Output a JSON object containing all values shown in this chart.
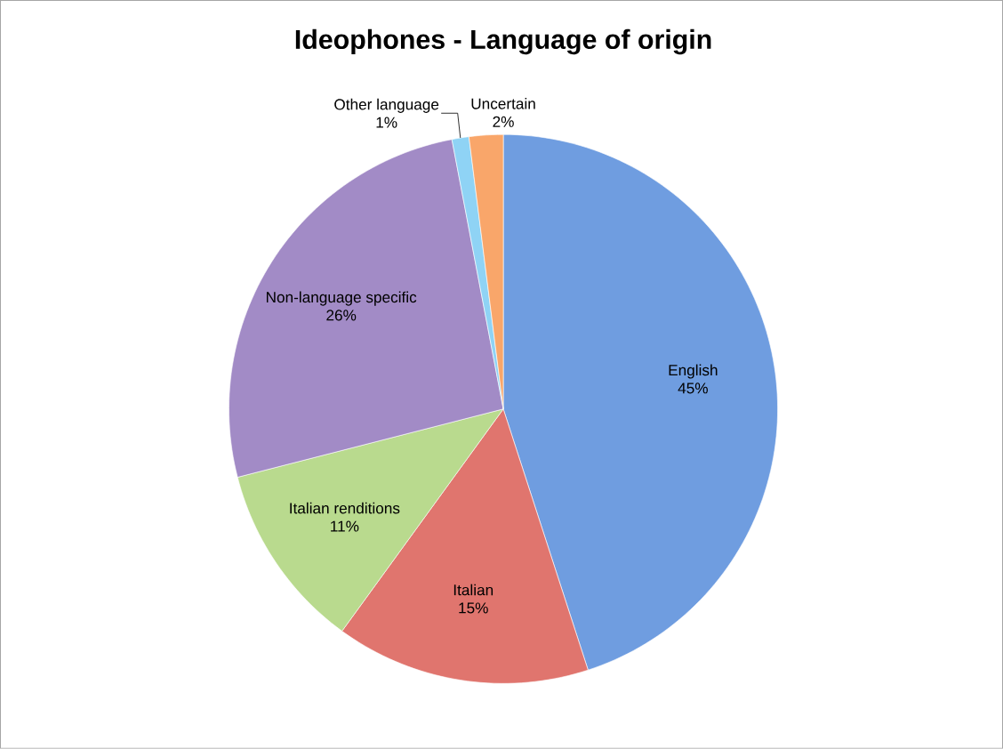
{
  "chart_data": {
    "type": "pie",
    "title": "Ideophones - Language of origin",
    "categories": [
      "English",
      "Italian",
      "Italian renditions",
      "Non-language specific",
      "Other language",
      "Uncertain"
    ],
    "values": [
      45,
      15,
      11,
      26,
      1,
      2
    ],
    "value_labels": [
      "45%",
      "15%",
      "11%",
      "26%",
      "1%",
      "2%"
    ],
    "colors": [
      "#6f9de0",
      "#e0756e",
      "#b9da8e",
      "#a28bc6",
      "#8fd3f5",
      "#f9a66a"
    ]
  }
}
